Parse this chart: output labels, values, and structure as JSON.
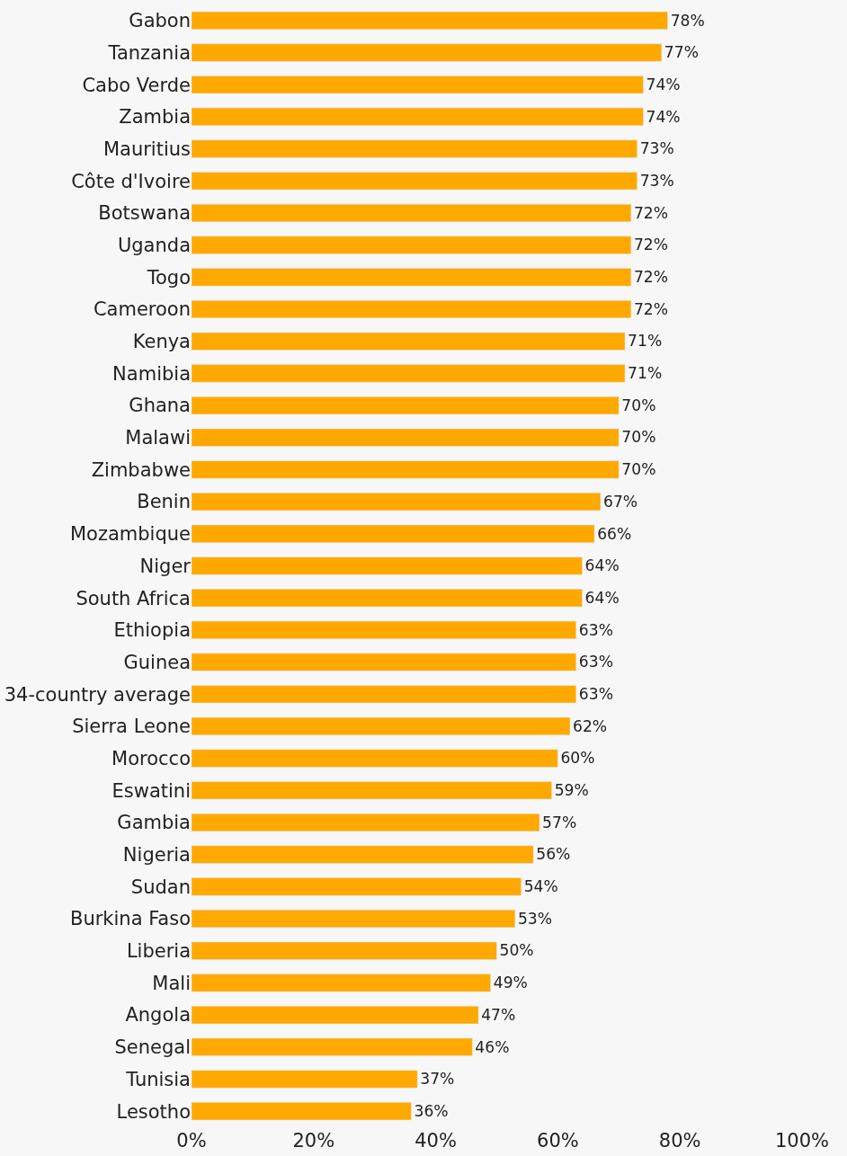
{
  "chart_data": {
    "type": "bar",
    "orientation": "horizontal",
    "categories": [
      "Gabon",
      "Tanzania",
      "Cabo Verde",
      "Zambia",
      "Mauritius",
      "Côte d'Ivoire",
      "Botswana",
      "Uganda",
      "Togo",
      "Cameroon",
      "Kenya",
      "Namibia",
      "Ghana",
      "Malawi",
      "Zimbabwe",
      "Benin",
      "Mozambique",
      "Niger",
      "South Africa",
      "Ethiopia",
      "Guinea",
      "34-country average",
      "Sierra Leone",
      "Morocco",
      "Eswatini",
      "Gambia",
      "Nigeria",
      "Sudan",
      "Burkina Faso",
      "Liberia",
      "Mali",
      "Angola",
      "Senegal",
      "Tunisia",
      "Lesotho"
    ],
    "values": [
      78,
      77,
      74,
      74,
      73,
      73,
      72,
      72,
      72,
      72,
      71,
      71,
      70,
      70,
      70,
      67,
      66,
      64,
      64,
      63,
      63,
      63,
      62,
      60,
      59,
      57,
      56,
      54,
      53,
      50,
      49,
      47,
      46,
      37,
      36
    ],
    "value_labels": [
      "78%",
      "77%",
      "74%",
      "74%",
      "73%",
      "73%",
      "72%",
      "72%",
      "72%",
      "72%",
      "71%",
      "71%",
      "70%",
      "70%",
      "70%",
      "67%",
      "66%",
      "64%",
      "64%",
      "63%",
      "63%",
      "63%",
      "62%",
      "60%",
      "59%",
      "57%",
      "56%",
      "54%",
      "53%",
      "50%",
      "49%",
      "47%",
      "46%",
      "37%",
      "36%"
    ],
    "color": "#ffa800",
    "xlim": [
      0,
      100
    ],
    "xticks": [
      {
        "value": 0,
        "label": "0%"
      },
      {
        "value": 20,
        "label": "20%"
      },
      {
        "value": 40,
        "label": "40%"
      },
      {
        "value": 60,
        "label": "60%"
      },
      {
        "value": 80,
        "label": "80%"
      },
      {
        "value": 100,
        "label": "100%"
      }
    ],
    "grid": false,
    "legend": false
  }
}
